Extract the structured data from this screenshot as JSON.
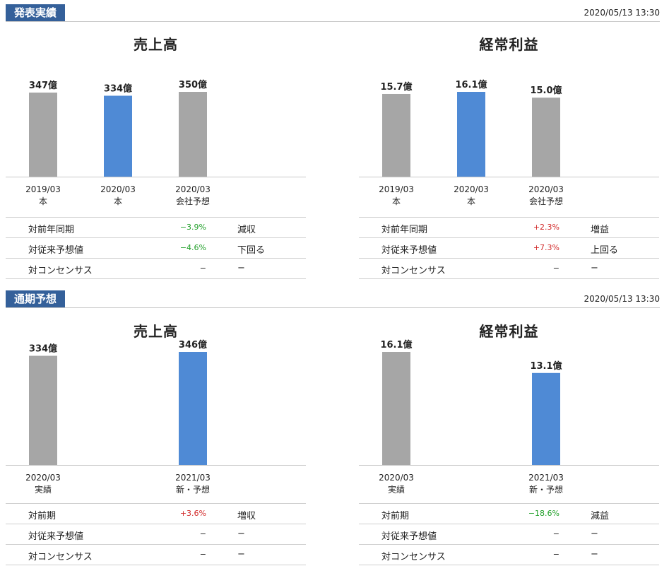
{
  "sections": [
    {
      "tag": "発表実績",
      "timestamp": "2020/05/13 13:30",
      "panels": [
        {
          "title": "売上高",
          "chart_data": {
            "type": "bar",
            "categories": [
              [
                "2019/03",
                "本"
              ],
              [
                "2020/03",
                "本"
              ],
              [
                "2020/03",
                "会社予想"
              ]
            ],
            "values": [
              347,
              334,
              350
            ],
            "labels": [
              "347億",
              "334億",
              "350億"
            ],
            "colors": [
              "#a6a6a6",
              "#4f8ad5",
              "#a6a6a6"
            ],
            "ylim": [
              0,
              350
            ]
          },
          "rows": [
            {
              "label": "対前年同期",
              "value": "−3.9%",
              "tone": "neg",
              "note": "減収"
            },
            {
              "label": "対従来予想値",
              "value": "−4.6%",
              "tone": "neg",
              "note": "下回る"
            },
            {
              "label": "対コンセンサス",
              "value": "−",
              "tone": "neu",
              "note": "−"
            }
          ]
        },
        {
          "title": "経常利益",
          "chart_data": {
            "type": "bar",
            "categories": [
              [
                "2019/03",
                "本"
              ],
              [
                "2020/03",
                "本"
              ],
              [
                "2020/03",
                "会社予想"
              ]
            ],
            "values": [
              15.7,
              16.1,
              15.0
            ],
            "labels": [
              "15.7億",
              "16.1億",
              "15.0億"
            ],
            "colors": [
              "#a6a6a6",
              "#4f8ad5",
              "#a6a6a6"
            ],
            "ylim": [
              0,
              16.1
            ]
          },
          "rows": [
            {
              "label": "対前年同期",
              "value": "+2.3%",
              "tone": "pos",
              "note": "増益"
            },
            {
              "label": "対従来予想値",
              "value": "+7.3%",
              "tone": "pos",
              "note": "上回る"
            },
            {
              "label": "対コンセンサス",
              "value": "−",
              "tone": "neu",
              "note": "−"
            }
          ]
        }
      ]
    },
    {
      "tag": "通期予想",
      "timestamp": "2020/05/13 13:30",
      "panels": [
        {
          "title": "売上高",
          "chart_data": {
            "type": "bar",
            "categories": [
              [
                "2020/03",
                "実績"
              ],
              [
                "2021/03",
                "新・予想"
              ]
            ],
            "slots": [
              0,
              2
            ],
            "values": [
              334,
              346
            ],
            "labels": [
              "334億",
              "346億"
            ],
            "colors": [
              "#a6a6a6",
              "#4f8ad5"
            ],
            "ylim": [
              0,
              346
            ]
          },
          "rows": [
            {
              "label": "対前期",
              "value": "+3.6%",
              "tone": "pos",
              "note": "増収"
            },
            {
              "label": "対従来予想値",
              "value": "−",
              "tone": "neu",
              "note": "−"
            },
            {
              "label": "対コンセンサス",
              "value": "−",
              "tone": "neu",
              "note": "−"
            }
          ]
        },
        {
          "title": "経常利益",
          "chart_data": {
            "type": "bar",
            "categories": [
              [
                "2020/03",
                "実績"
              ],
              [
                "2021/03",
                "新・予想"
              ]
            ],
            "slots": [
              0,
              2
            ],
            "values": [
              16.1,
              13.1
            ],
            "labels": [
              "16.1億",
              "13.1億"
            ],
            "colors": [
              "#a6a6a6",
              "#4f8ad5"
            ],
            "ylim": [
              0,
              16.1
            ]
          },
          "rows": [
            {
              "label": "対前期",
              "value": "−18.6%",
              "tone": "neg",
              "note": "減益"
            },
            {
              "label": "対従来予想値",
              "value": "−",
              "tone": "neu",
              "note": "−"
            },
            {
              "label": "対コンセンサス",
              "value": "−",
              "tone": "neu",
              "note": "−"
            }
          ]
        }
      ]
    }
  ]
}
